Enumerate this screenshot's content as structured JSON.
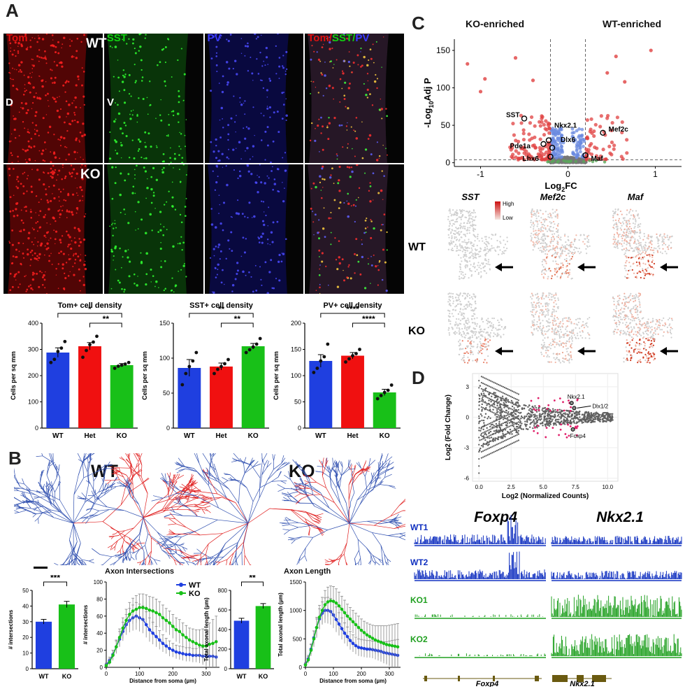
{
  "panels": {
    "A": {
      "letter": "A",
      "channels": [
        "Tom",
        "SST",
        "PV",
        "Tom/SST/PV"
      ],
      "row_labels": [
        "WT",
        "KO"
      ],
      "orientation": [
        "D",
        "V"
      ],
      "channel_colors": {
        "Tom": "#e01010",
        "SST": "#10d010",
        "PV": "#3a3aff"
      }
    },
    "B": {
      "letter": "B",
      "group_labels": [
        "WT",
        "KO"
      ],
      "axon_intersections_title": "Axon Intersections",
      "axon_length_title": "Axon Length"
    },
    "C": {
      "letter": "C",
      "ko_label": "KO-enriched",
      "wt_label": "WT-enriched",
      "umap_genes": [
        "SST",
        "Mef2c",
        "Maf"
      ],
      "umap_rows": [
        "WT",
        "KO"
      ],
      "scale_high": "High",
      "scale_low": "Low"
    },
    "D": {
      "letter": "D",
      "track_labels": [
        "WT1",
        "WT2",
        "KO1",
        "KO2"
      ],
      "gene_titles": [
        "Foxp4",
        "Nkx2.1"
      ],
      "gene_models": [
        "Foxp4",
        "Nkx2.1"
      ]
    }
  },
  "chart_data": [
    {
      "id": "tom-density",
      "type": "bar",
      "title": "Tom+ cell density",
      "ylabel": "Cells per sq mm",
      "ylim": [
        0,
        400
      ],
      "yticks": [
        0,
        100,
        200,
        300,
        400
      ],
      "categories": [
        "WT",
        "Het",
        "KO"
      ],
      "values": [
        288,
        312,
        240
      ],
      "errors": [
        18,
        14,
        6
      ],
      "colors": [
        "#1f3fe0",
        "#f01010",
        "#18c018"
      ],
      "points": [
        [
          250,
          262,
          292,
          305,
          330
        ],
        [
          270,
          296,
          318,
          328,
          350
        ],
        [
          228,
          236,
          240,
          244,
          250
        ]
      ],
      "significance": [
        {
          "from": 0,
          "to": 2,
          "label": "*"
        },
        {
          "from": 1,
          "to": 2,
          "label": "**"
        }
      ]
    },
    {
      "id": "sst-density",
      "type": "bar",
      "title": "SST+ cell density",
      "ylabel": "Cells per sq mm",
      "ylim": [
        0,
        150
      ],
      "yticks": [
        0,
        50,
        100,
        150
      ],
      "categories": [
        "WT",
        "Het",
        "KO"
      ],
      "values": [
        86,
        88,
        117
      ],
      "errors": [
        12,
        5,
        4
      ],
      "colors": [
        "#1f3fe0",
        "#f01010",
        "#18c018"
      ],
      "points": [
        [
          62,
          78,
          88,
          96,
          108
        ],
        [
          78,
          84,
          88,
          92,
          98
        ],
        [
          108,
          112,
          116,
          120,
          128
        ]
      ],
      "significance": [
        {
          "from": 0,
          "to": 2,
          "label": "**"
        },
        {
          "from": 1,
          "to": 2,
          "label": "**"
        }
      ]
    },
    {
      "id": "pv-density",
      "type": "bar",
      "title": "PV+ cell density",
      "ylabel": "Cells per sq mm",
      "ylim": [
        0,
        200
      ],
      "yticks": [
        0,
        50,
        100,
        150,
        200
      ],
      "categories": [
        "WT",
        "Het",
        "KO"
      ],
      "values": [
        128,
        138,
        68
      ],
      "errors": [
        12,
        6,
        6
      ],
      "colors": [
        "#1f3fe0",
        "#f01010",
        "#18c018"
      ],
      "points": [
        [
          106,
          114,
          128,
          136,
          160
        ],
        [
          126,
          132,
          138,
          142,
          150
        ],
        [
          56,
          62,
          68,
          72,
          82
        ]
      ],
      "significance": [
        {
          "from": 0,
          "to": 2,
          "label": "****"
        },
        {
          "from": 1,
          "to": 2,
          "label": "****"
        }
      ]
    },
    {
      "id": "n-intersections",
      "type": "bar",
      "ylabel": "# intersections",
      "ylim": [
        0,
        50
      ],
      "yticks": [
        0,
        10,
        20,
        30,
        40,
        50
      ],
      "categories": [
        "WT",
        "KO"
      ],
      "values": [
        30,
        41
      ],
      "errors": [
        1.5,
        2
      ],
      "colors": [
        "#1f3fe0",
        "#18c018"
      ],
      "significance": [
        {
          "from": 0,
          "to": 1,
          "label": "***"
        }
      ]
    },
    {
      "id": "sholl-intersections",
      "type": "line",
      "xlabel": "Distance from soma (µm)",
      "ylabel": "# intersections",
      "xlim": [
        0,
        340
      ],
      "xticks": [
        0,
        100,
        200,
        300
      ],
      "ylim": [
        0,
        100
      ],
      "yticks": [
        0,
        20,
        40,
        60,
        80,
        100
      ],
      "x": [
        0,
        10,
        20,
        30,
        40,
        50,
        60,
        70,
        80,
        90,
        100,
        110,
        120,
        130,
        140,
        150,
        160,
        170,
        180,
        190,
        200,
        210,
        220,
        230,
        240,
        250,
        260,
        270,
        280,
        290,
        300,
        310,
        320,
        330
      ],
      "series": [
        {
          "name": "WT",
          "color": "#1f3fe0",
          "values": [
            3,
            8,
            15,
            24,
            33,
            42,
            50,
            55,
            58,
            60,
            58,
            56,
            50,
            44,
            40,
            36,
            32,
            28,
            25,
            22,
            20,
            18,
            17,
            16,
            15,
            15,
            14,
            14,
            14,
            13,
            13,
            13,
            13,
            12
          ],
          "errors": [
            2,
            4,
            5,
            7,
            9,
            11,
            12,
            14,
            15,
            16,
            16,
            16,
            15,
            14,
            13,
            12,
            11,
            10,
            9,
            9,
            8,
            8,
            8,
            8,
            8,
            8,
            8,
            8,
            9,
            10,
            12,
            14,
            16,
            18
          ]
        },
        {
          "name": "KO",
          "color": "#18c018",
          "values": [
            2,
            6,
            14,
            24,
            35,
            46,
            55,
            62,
            66,
            68,
            70,
            70,
            69,
            67,
            66,
            64,
            62,
            58,
            55,
            52,
            48,
            44,
            42,
            38,
            35,
            32,
            30,
            28,
            26,
            25,
            25,
            27,
            28,
            30
          ],
          "errors": [
            2,
            4,
            6,
            8,
            10,
            12,
            13,
            14,
            15,
            16,
            16,
            16,
            16,
            16,
            16,
            16,
            15,
            15,
            14,
            14,
            14,
            14,
            14,
            14,
            14,
            14,
            15,
            16,
            18,
            20,
            22,
            25,
            28,
            30
          ]
        }
      ],
      "legend": "top-right"
    },
    {
      "id": "total-axon-length",
      "type": "bar",
      "ylabel": "Total axonal length (µm)",
      "ylim": [
        0,
        800
      ],
      "yticks": [
        0,
        200,
        400,
        600,
        800
      ],
      "categories": [
        "WT",
        "KO"
      ],
      "values": [
        490,
        640
      ],
      "errors": [
        25,
        25
      ],
      "colors": [
        "#1f3fe0",
        "#18c018"
      ],
      "significance": [
        {
          "from": 0,
          "to": 1,
          "label": "**"
        }
      ]
    },
    {
      "id": "axon-length-distance",
      "type": "line",
      "xlabel": "Distance from soma (µm)",
      "ylabel": "Total axonal length (µm)",
      "xlim": [
        0,
        340
      ],
      "xticks": [
        0,
        100,
        200,
        300
      ],
      "ylim": [
        0,
        1500
      ],
      "yticks": [
        0,
        500,
        1000,
        1500
      ],
      "x": [
        0,
        10,
        20,
        30,
        40,
        50,
        60,
        70,
        80,
        90,
        100,
        110,
        120,
        130,
        140,
        150,
        160,
        170,
        180,
        190,
        200,
        210,
        220,
        230,
        240,
        250,
        260,
        270,
        280,
        290,
        300,
        310,
        320,
        330
      ],
      "series": [
        {
          "name": "WT",
          "color": "#1f3fe0",
          "values": [
            50,
            150,
            320,
            520,
            700,
            850,
            950,
            1000,
            1000,
            980,
            920,
            840,
            760,
            680,
            600,
            540,
            470,
            420,
            380,
            350,
            340,
            330,
            320,
            320,
            310,
            300,
            290,
            280,
            260,
            250,
            240,
            230,
            220,
            210
          ],
          "errors": [
            30,
            60,
            90,
            120,
            150,
            180,
            200,
            220,
            230,
            230,
            230,
            220,
            200,
            190,
            180,
            170,
            160,
            150,
            150,
            150,
            150,
            150,
            150,
            150,
            150,
            160,
            170,
            180,
            190,
            200,
            220,
            240,
            260,
            280
          ]
        },
        {
          "name": "KO",
          "color": "#18c018",
          "values": [
            40,
            130,
            300,
            500,
            700,
            880,
            1000,
            1100,
            1150,
            1170,
            1160,
            1130,
            1080,
            1020,
            960,
            900,
            850,
            800,
            750,
            700,
            650,
            610,
            570,
            540,
            510,
            480,
            460,
            440,
            420,
            400,
            390,
            380,
            370,
            360
          ],
          "errors": [
            30,
            60,
            100,
            140,
            180,
            210,
            230,
            250,
            260,
            260,
            260,
            250,
            240,
            230,
            220,
            210,
            200,
            200,
            200,
            200,
            200,
            200,
            210,
            220,
            230,
            250,
            270,
            290,
            310,
            330,
            350,
            370,
            390,
            410
          ]
        }
      ]
    },
    {
      "id": "volcano",
      "type": "scatter",
      "xlabel": "Log2FC",
      "ylabel": "-Log10Adj P",
      "xlim": [
        -1.3,
        1.3
      ],
      "xticks": [
        -1,
        0,
        1
      ],
      "ylim": [
        -5,
        165
      ],
      "yticks": [
        0,
        50,
        100,
        150
      ],
      "labeled_genes": [
        {
          "name": "SST",
          "x": -0.5,
          "y": 59
        },
        {
          "name": "Nkx2.1",
          "x": -0.22,
          "y": 30
        },
        {
          "name": "Dlx6",
          "x": -0.18,
          "y": 20
        },
        {
          "name": "Pde1a",
          "x": -0.28,
          "y": 25
        },
        {
          "name": "Lhx6",
          "x": -0.2,
          "y": 8
        },
        {
          "name": "Mef2c",
          "x": 0.4,
          "y": 40
        },
        {
          "name": "Maf",
          "x": 0.2,
          "y": 10
        }
      ]
    },
    {
      "id": "ma-plot",
      "type": "scatter",
      "xlabel": "Log2 (Normalized Counts)",
      "ylabel": "Log2 (Fold Change)",
      "xlim": [
        -0.5,
        10.8
      ],
      "xticks": [
        0.0,
        2.5,
        5.0,
        7.5,
        10.0
      ],
      "ylim": [
        -6.3,
        4.3
      ],
      "yticks": [
        -6,
        -3,
        0,
        3
      ],
      "labeled_genes": [
        {
          "name": "Nkx2.1",
          "x": 7.2,
          "y": 1.4
        },
        {
          "name": "Dlx1/2",
          "x": 7.4,
          "y": 0.9
        },
        {
          "name": "Foxp4",
          "x": 7.3,
          "y": -1.2
        }
      ]
    }
  ]
}
